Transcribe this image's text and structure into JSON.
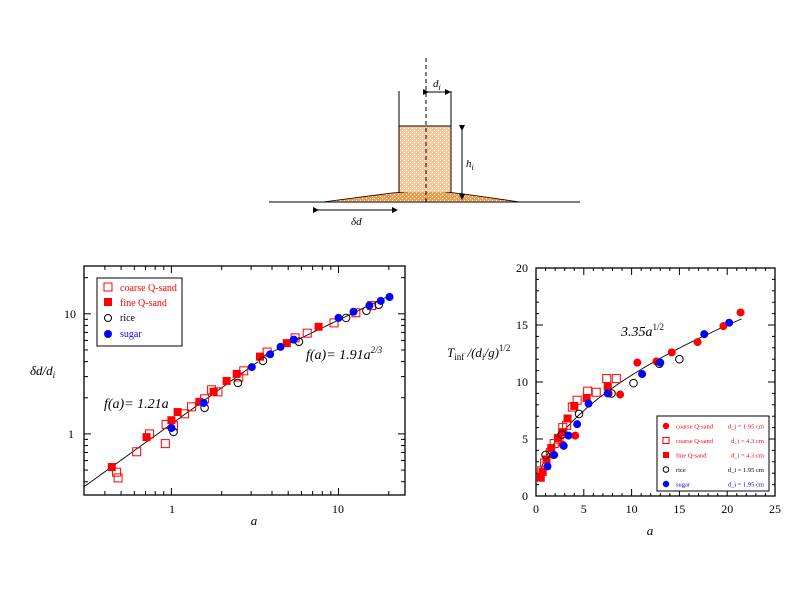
{
  "diagram": {
    "labels": {
      "radius": "d",
      "radius_sub": "i",
      "height": "h",
      "height_sub": "i",
      "spread": "δd"
    },
    "colors": {
      "fill": "#f6c89c",
      "fill_dark": "#ec9f50",
      "line": "#000000"
    }
  },
  "colors": {
    "red": "#ff0000",
    "blue": "#0000ff",
    "black": "#000000"
  },
  "chart_data": [
    {
      "type": "scatter",
      "scale": "log-log",
      "title": "",
      "xlabel": "a",
      "ylabel": "δd/d_i",
      "xlim": [
        0.3,
        25
      ],
      "ylim": [
        0.31,
        25
      ],
      "xticks": [
        {
          "value": 1,
          "label": "1"
        },
        {
          "value": 10,
          "label": "10"
        }
      ],
      "yticks": [
        {
          "value": 1,
          "label": "1"
        },
        {
          "value": 10,
          "label": "10"
        }
      ],
      "legend": {
        "placement": "top-left",
        "entries": [
          {
            "label": "coarse Q-sand",
            "marker": "open-square",
            "color": "#ff0000"
          },
          {
            "label": "fine Q-sand",
            "marker": "filled-square",
            "color": "#ff0000"
          },
          {
            "label": "rice",
            "marker": "open-circle",
            "color": "#000000"
          },
          {
            "label": "sugar",
            "marker": "filled-circle",
            "color": "#0000ff"
          }
        ]
      },
      "fits": [
        {
          "label": "f(a)= 1.21a",
          "coef": 1.21,
          "exponent": 1,
          "range": [
            0.3,
            3.3
          ]
        },
        {
          "label": "f(a)= 1.91a^2/3",
          "coef": 1.91,
          "exponent": 0.6667,
          "range": [
            3.3,
            21
          ]
        }
      ],
      "series": [
        {
          "name": "coarse Q-sand",
          "marker": "open-square",
          "color": "#ff0000",
          "x": [
            0.47,
            0.48,
            0.62,
            0.74,
            0.92,
            0.93,
            1.03,
            1.2,
            1.32,
            1.58,
            1.74,
            1.9,
            2.53,
            2.71,
            3.74,
            5.5,
            6.5,
            9.4,
            12.7,
            15.8
          ],
          "y": [
            0.48,
            0.43,
            0.71,
            1.0,
            0.83,
            1.2,
            1.17,
            1.47,
            1.68,
            1.96,
            2.33,
            2.24,
            2.98,
            3.35,
            4.8,
            6.3,
            6.9,
            8.4,
            10.2,
            11.7
          ]
        },
        {
          "name": "fine Q-sand",
          "marker": "filled-square",
          "color": "#ff0000",
          "x": [
            0.44,
            0.71,
            1.0,
            1.09,
            1.47,
            1.79,
            2.14,
            2.46,
            3.39,
            4.9,
            7.6
          ],
          "y": [
            0.53,
            0.94,
            1.3,
            1.52,
            1.85,
            2.24,
            2.76,
            3.16,
            4.4,
            5.7,
            7.8
          ]
        },
        {
          "name": "rice",
          "marker": "open-circle",
          "color": "#000000",
          "x": [
            1.03,
            1.58,
            2.5,
            3.53,
            5.8,
            11.1,
            14.7,
            17.4
          ],
          "y": [
            1.04,
            1.65,
            2.66,
            4.06,
            5.86,
            9.25,
            10.6,
            11.9
          ]
        },
        {
          "name": "sugar",
          "marker": "filled-circle",
          "color": "#0000ff",
          "x": [
            1.0,
            1.56,
            3.03,
            3.9,
            4.5,
            5.4,
            10.0,
            12.3,
            15.3,
            17.9,
            20.2
          ],
          "y": [
            1.12,
            1.81,
            3.6,
            4.6,
            5.3,
            6.1,
            9.25,
            10.4,
            11.7,
            12.8,
            13.8
          ]
        }
      ]
    },
    {
      "type": "scatter",
      "scale": "linear",
      "title": "",
      "xlabel": "a",
      "ylabel": "T_inf/(d_i/g)^1/2",
      "xlim": [
        0,
        25
      ],
      "ylim": [
        0,
        20
      ],
      "xticks": [
        {
          "value": 0,
          "label": "0"
        },
        {
          "value": 5,
          "label": "5"
        },
        {
          "value": 10,
          "label": "10"
        },
        {
          "value": 15,
          "label": "15"
        },
        {
          "value": 20,
          "label": "20"
        },
        {
          "value": 25,
          "label": "25"
        }
      ],
      "yticks": [
        {
          "value": 0,
          "label": "0"
        },
        {
          "value": 5,
          "label": "5"
        },
        {
          "value": 10,
          "label": "10"
        },
        {
          "value": 15,
          "label": "15"
        },
        {
          "value": 20,
          "label": "20"
        }
      ],
      "legend": {
        "placement": "bottom-right",
        "entries": [
          {
            "label": "coarse Q-sand",
            "size": "d_i = 1.95 cm",
            "marker": "filled-circle",
            "color": "#ff0000"
          },
          {
            "label": "coarse Q-sand",
            "size": "d_i = 4.3 cm",
            "marker": "open-square",
            "color": "#ff0000"
          },
          {
            "label": "fine Q-sand",
            "size": "d_i = 4.3 cm",
            "marker": "filled-square",
            "color": "#ff0000"
          },
          {
            "label": "rice",
            "size": "d_i = 1.95 cm",
            "marker": "open-circle",
            "color": "#000000"
          },
          {
            "label": "sugar",
            "size": "d_i = 1.95 cm",
            "marker": "filled-circle",
            "color": "#0000ff"
          }
        ]
      },
      "fits": [
        {
          "label": "3.35a^1/2",
          "coef": 3.35,
          "exponent": 0.5,
          "range": [
            0.25,
            21.5
          ]
        }
      ],
      "series": [
        {
          "name": "coarse Q-sand d_i = 1.95 cm",
          "marker": "filled-circle",
          "color": "#ff0000",
          "x": [
            1.8,
            2.8,
            4.1,
            7.6,
            8.8,
            10.6,
            12.6,
            14.2,
            16.9,
            19.6,
            21.4
          ],
          "y": [
            3.6,
            4.5,
            5.3,
            9.0,
            8.9,
            11.7,
            11.8,
            12.6,
            13.5,
            14.9,
            16.1
          ]
        },
        {
          "name": "coarse Q-sand d_i = 4.3 cm",
          "marker": "open-square",
          "color": "#ff0000",
          "x": [
            0.6,
            0.9,
            1.5,
            1.9,
            2.4,
            2.8,
            3.2,
            3.8,
            4.3,
            5.4,
            6.3,
            7.4,
            8.4
          ],
          "y": [
            2.2,
            2.9,
            3.8,
            4.6,
            5.0,
            6.0,
            6.2,
            7.8,
            8.4,
            9.2,
            9.1,
            10.3,
            10.3
          ]
        },
        {
          "name": "fine Q-sand d_i = 4.3 cm",
          "marker": "filled-square",
          "color": "#ff0000",
          "x": [
            0.5,
            0.7,
            1.1,
            1.6,
            2.3,
            2.8,
            3.3,
            4.0,
            5.3,
            7.5
          ],
          "y": [
            1.6,
            2.1,
            3.2,
            4.2,
            5.1,
            5.6,
            6.8,
            7.9,
            8.6,
            9.6
          ]
        },
        {
          "name": "rice d_i = 1.95 cm",
          "marker": "open-circle",
          "color": "#000000",
          "x": [
            1.0,
            2.7,
            4.5,
            7.9,
            10.2,
            12.9,
            15.0
          ],
          "y": [
            3.6,
            5.4,
            7.2,
            9.0,
            9.9,
            11.6,
            12.0
          ]
        },
        {
          "name": "sugar d_i = 1.95 cm",
          "marker": "filled-circle",
          "color": "#0000ff",
          "x": [
            1.2,
            1.9,
            2.9,
            3.4,
            4.3,
            5.5,
            7.5,
            11.1,
            13.0,
            17.6,
            20.2
          ],
          "y": [
            2.6,
            3.6,
            4.4,
            5.3,
            6.3,
            8.1,
            9.0,
            10.7,
            11.7,
            14.2,
            15.2
          ]
        }
      ]
    }
  ]
}
